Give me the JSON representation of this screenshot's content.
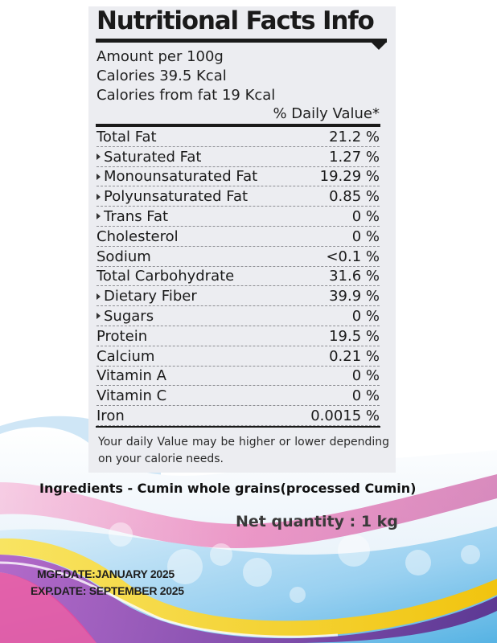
{
  "label": {
    "title": "Nutritional Facts Info",
    "amount_per": "Amount per 100g",
    "calories": "Calories 39.5 Kcal",
    "calories_from_fat": "Calories from fat 19 Kcal",
    "daily_value_header": "% Daily Value*",
    "rows": [
      {
        "name": "Total Fat",
        "value": "21.2 %",
        "sub": false
      },
      {
        "name": "Saturated Fat",
        "value": "1.27 %",
        "sub": true
      },
      {
        "name": "Monounsaturated Fat",
        "value": "19.29 %",
        "sub": true
      },
      {
        "name": "Polyunsaturated Fat",
        "value": "0.85 %",
        "sub": true
      },
      {
        "name": "Trans Fat",
        "value": "0 %",
        "sub": true
      },
      {
        "name": "Cholesterol",
        "value": "0 %",
        "sub": false
      },
      {
        "name": "Sodium",
        "value": "<0.1 %",
        "sub": false
      },
      {
        "name": "Total Carbohydrate",
        "value": "31.6 %",
        "sub": false
      },
      {
        "name": "Dietary Fiber",
        "value": "39.9 %",
        "sub": true
      },
      {
        "name": "Sugars",
        "value": "0 %",
        "sub": true
      },
      {
        "name": "Protein",
        "value": "19.5 %",
        "sub": false
      },
      {
        "name": "Calcium",
        "value": "0.21 %",
        "sub": false
      },
      {
        "name": "Vitamin A",
        "value": "0 %",
        "sub": false
      },
      {
        "name": "Vitamin C",
        "value": "0 %",
        "sub": false
      },
      {
        "name": "Iron",
        "value": "0.0015 %",
        "sub": false
      }
    ],
    "footnote": "Your daily Value may be higher or lower depending on your calorie needs."
  },
  "ingredients": "Ingredients - Cumin whole grains(processed Cumin)",
  "net_quantity": "Net quantity : 1 kg",
  "mfg_date": "MGF.DATE:JANUARY 2025",
  "exp_date": "EXP.DATE: SEPTEMBER 2025",
  "colors": {
    "panel": "#ecedf1",
    "ink": "#1a1a1a",
    "swoosh_pink": "#e94a9c",
    "swoosh_blue": "#3fa9e0",
    "swoosh_yellow": "#f5d320",
    "swoosh_purple": "#7b3fa0"
  }
}
